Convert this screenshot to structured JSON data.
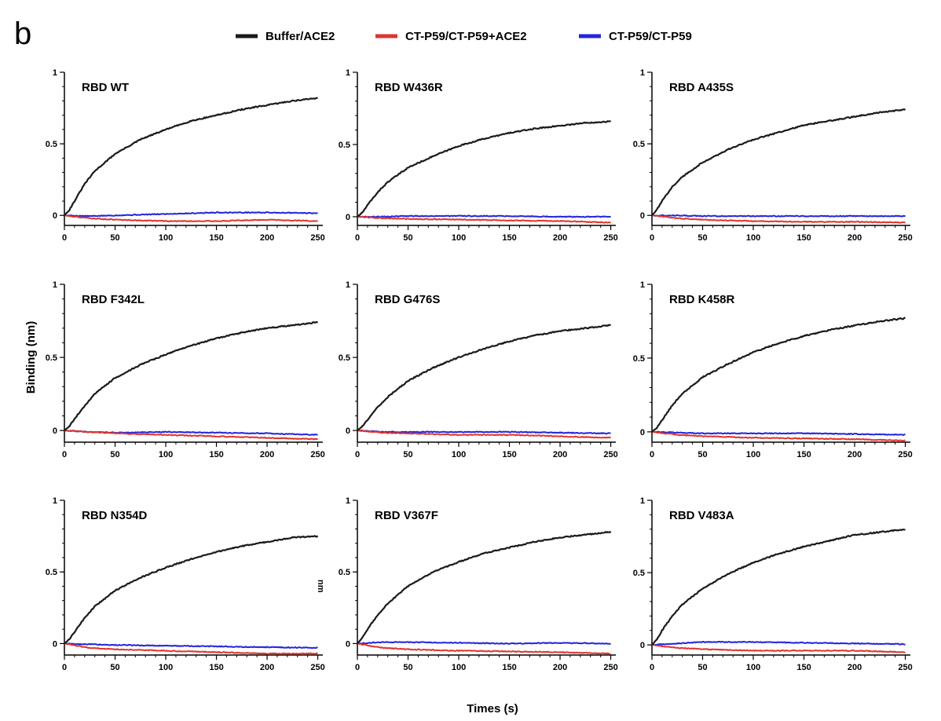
{
  "panel_label": "b",
  "colors": {
    "Buffer/ACE2": "#1a1a1a",
    "CT-P59/CT-P59+ACE2": "#e0352b",
    "CT-P59/CT-P59": "#2323e0"
  },
  "y_axis_label": "Binding (nm)",
  "x_axis_label": "Times (s)",
  "stray_label": "nm",
  "chart_data": [
    {
      "type": "line",
      "title": "RBD WT",
      "xlim": [
        0,
        255
      ],
      "ylim": [
        -0.07,
        1.0
      ],
      "x_ticks": [
        0,
        50,
        100,
        150,
        200,
        250
      ],
      "y_ticks": [
        0,
        0.5,
        1
      ],
      "y_tick_labels": [
        "0",
        "0.5",
        "1"
      ],
      "series": [
        {
          "name": "Buffer/ACE2",
          "x": [
            0,
            5,
            10,
            20,
            30,
            50,
            75,
            100,
            125,
            150,
            175,
            200,
            225,
            250
          ],
          "y": [
            0,
            0.04,
            0.1,
            0.22,
            0.31,
            0.43,
            0.53,
            0.6,
            0.66,
            0.7,
            0.74,
            0.77,
            0.8,
            0.82
          ]
        },
        {
          "name": "CT-P59/CT-P59+ACE2",
          "x": [
            0,
            25,
            50,
            100,
            150,
            200,
            250
          ],
          "y": [
            0,
            -0.02,
            -0.03,
            -0.04,
            -0.04,
            -0.03,
            -0.04
          ]
        },
        {
          "name": "CT-P59/CT-P59",
          "x": [
            0,
            25,
            50,
            100,
            150,
            200,
            250
          ],
          "y": [
            0,
            -0.005,
            0.0,
            0.01,
            0.02,
            0.02,
            0.015
          ]
        }
      ]
    },
    {
      "type": "line",
      "title": "RBD W436R",
      "xlim": [
        0,
        255
      ],
      "ylim": [
        -0.06,
        1.0
      ],
      "x_ticks": [
        0,
        50,
        100,
        150,
        200,
        250
      ],
      "y_ticks": [
        0,
        0.5,
        1
      ],
      "y_tick_labels": [
        "0",
        "0.5",
        "1"
      ],
      "series": [
        {
          "name": "Buffer/ACE2",
          "x": [
            0,
            5,
            10,
            20,
            30,
            50,
            75,
            100,
            125,
            150,
            175,
            200,
            225,
            250
          ],
          "y": [
            0,
            0.03,
            0.08,
            0.17,
            0.24,
            0.34,
            0.42,
            0.49,
            0.54,
            0.58,
            0.61,
            0.63,
            0.65,
            0.66
          ]
        },
        {
          "name": "CT-P59/CT-P59+ACE2",
          "x": [
            0,
            25,
            50,
            100,
            150,
            200,
            250
          ],
          "y": [
            0,
            -0.01,
            -0.015,
            -0.02,
            -0.025,
            -0.03,
            -0.04
          ]
        },
        {
          "name": "CT-P59/CT-P59",
          "x": [
            0,
            25,
            50,
            100,
            150,
            200,
            250
          ],
          "y": [
            0,
            0.0,
            0.005,
            0.005,
            0.005,
            0.0,
            0.0
          ]
        }
      ]
    },
    {
      "type": "line",
      "title": "RBD A435S",
      "xlim": [
        0,
        255
      ],
      "ylim": [
        -0.07,
        1.0
      ],
      "x_ticks": [
        0,
        50,
        100,
        150,
        200,
        250
      ],
      "y_ticks": [
        0,
        0.5,
        1
      ],
      "y_tick_labels": [
        "0",
        "0.5",
        "1"
      ],
      "series": [
        {
          "name": "Buffer/ACE2",
          "x": [
            0,
            5,
            10,
            20,
            30,
            50,
            75,
            100,
            125,
            150,
            175,
            200,
            225,
            250
          ],
          "y": [
            0,
            0.04,
            0.1,
            0.2,
            0.27,
            0.37,
            0.46,
            0.53,
            0.58,
            0.63,
            0.66,
            0.69,
            0.72,
            0.74
          ]
        },
        {
          "name": "CT-P59/CT-P59+ACE2",
          "x": [
            0,
            25,
            50,
            100,
            150,
            200,
            250
          ],
          "y": [
            0,
            -0.02,
            -0.03,
            -0.04,
            -0.045,
            -0.045,
            -0.05
          ]
        },
        {
          "name": "CT-P59/CT-P59",
          "x": [
            0,
            25,
            50,
            100,
            150,
            200,
            250
          ],
          "y": [
            0,
            0.0,
            -0.005,
            -0.005,
            -0.005,
            -0.005,
            -0.005
          ]
        }
      ]
    },
    {
      "type": "line",
      "title": "RBD F342L",
      "xlim": [
        0,
        255
      ],
      "ylim": [
        -0.08,
        1.0
      ],
      "x_ticks": [
        0,
        50,
        100,
        150,
        200,
        250
      ],
      "y_ticks": [
        0,
        0.5,
        1
      ],
      "y_tick_labels": [
        "0",
        "0.5",
        "1"
      ],
      "series": [
        {
          "name": "Buffer/ACE2",
          "x": [
            0,
            5,
            10,
            20,
            30,
            50,
            75,
            100,
            125,
            150,
            175,
            200,
            225,
            250
          ],
          "y": [
            0,
            0.03,
            0.08,
            0.17,
            0.25,
            0.36,
            0.45,
            0.52,
            0.58,
            0.63,
            0.67,
            0.7,
            0.72,
            0.74
          ]
        },
        {
          "name": "CT-P59/CT-P59+ACE2",
          "x": [
            0,
            25,
            50,
            100,
            150,
            200,
            250
          ],
          "y": [
            0,
            -0.01,
            -0.02,
            -0.03,
            -0.04,
            -0.05,
            -0.06
          ]
        },
        {
          "name": "CT-P59/CT-P59",
          "x": [
            0,
            25,
            50,
            100,
            150,
            200,
            250
          ],
          "y": [
            0,
            -0.01,
            -0.015,
            -0.01,
            -0.015,
            -0.02,
            -0.03
          ]
        }
      ]
    },
    {
      "type": "line",
      "title": "RBD G476S",
      "xlim": [
        0,
        255
      ],
      "ylim": [
        -0.08,
        1.0
      ],
      "x_ticks": [
        0,
        50,
        100,
        150,
        200,
        250
      ],
      "y_ticks": [
        0,
        0.5,
        1
      ],
      "y_tick_labels": [
        "0",
        "0.5",
        "1"
      ],
      "series": [
        {
          "name": "Buffer/ACE2",
          "x": [
            0,
            5,
            10,
            20,
            30,
            50,
            75,
            100,
            125,
            150,
            175,
            200,
            225,
            250
          ],
          "y": [
            0,
            0.03,
            0.07,
            0.16,
            0.23,
            0.34,
            0.43,
            0.5,
            0.56,
            0.61,
            0.65,
            0.68,
            0.7,
            0.72
          ]
        },
        {
          "name": "CT-P59/CT-P59+ACE2",
          "x": [
            0,
            25,
            50,
            100,
            150,
            200,
            250
          ],
          "y": [
            0,
            -0.015,
            -0.02,
            -0.03,
            -0.03,
            -0.04,
            -0.05
          ]
        },
        {
          "name": "CT-P59/CT-P59",
          "x": [
            0,
            25,
            50,
            100,
            150,
            200,
            250
          ],
          "y": [
            0,
            -0.01,
            -0.01,
            -0.01,
            -0.01,
            -0.015,
            -0.02
          ]
        }
      ]
    },
    {
      "type": "line",
      "title": "RBD K458R",
      "xlim": [
        0,
        255
      ],
      "ylim": [
        -0.07,
        1.0
      ],
      "x_ticks": [
        0,
        50,
        100,
        150,
        200,
        250
      ],
      "y_ticks": [
        0,
        0.5,
        1
      ],
      "y_tick_labels": [
        "0",
        "0.5",
        "1"
      ],
      "series": [
        {
          "name": "Buffer/ACE2",
          "x": [
            0,
            5,
            10,
            20,
            30,
            50,
            75,
            100,
            125,
            150,
            175,
            200,
            225,
            250
          ],
          "y": [
            0,
            0.03,
            0.08,
            0.18,
            0.26,
            0.37,
            0.46,
            0.54,
            0.6,
            0.65,
            0.69,
            0.72,
            0.75,
            0.77
          ]
        },
        {
          "name": "CT-P59/CT-P59+ACE2",
          "x": [
            0,
            25,
            50,
            100,
            150,
            200,
            250
          ],
          "y": [
            0,
            -0.02,
            -0.03,
            -0.04,
            -0.045,
            -0.05,
            -0.06
          ]
        },
        {
          "name": "CT-P59/CT-P59",
          "x": [
            0,
            25,
            50,
            100,
            150,
            200,
            250
          ],
          "y": [
            0,
            -0.005,
            -0.01,
            -0.01,
            -0.01,
            -0.015,
            -0.02
          ]
        }
      ]
    },
    {
      "type": "line",
      "title": "RBD N354D",
      "xlim": [
        0,
        255
      ],
      "ylim": [
        -0.08,
        1.0
      ],
      "x_ticks": [
        0,
        50,
        100,
        150,
        200,
        250
      ],
      "y_ticks": [
        0,
        0.5,
        1
      ],
      "y_tick_labels": [
        "0",
        "0.5",
        "1"
      ],
      "series": [
        {
          "name": "Buffer/ACE2",
          "x": [
            0,
            5,
            10,
            20,
            30,
            50,
            75,
            100,
            125,
            150,
            175,
            200,
            225,
            250
          ],
          "y": [
            0,
            0.03,
            0.08,
            0.18,
            0.26,
            0.37,
            0.46,
            0.53,
            0.59,
            0.64,
            0.68,
            0.71,
            0.74,
            0.75
          ]
        },
        {
          "name": "CT-P59/CT-P59+ACE2",
          "x": [
            0,
            25,
            50,
            100,
            150,
            200,
            250
          ],
          "y": [
            0,
            -0.03,
            -0.04,
            -0.05,
            -0.06,
            -0.07,
            -0.07
          ]
        },
        {
          "name": "CT-P59/CT-P59",
          "x": [
            0,
            25,
            50,
            100,
            150,
            200,
            250
          ],
          "y": [
            0,
            -0.005,
            -0.01,
            -0.015,
            -0.02,
            -0.025,
            -0.03
          ]
        }
      ]
    },
    {
      "type": "line",
      "title": "RBD V367F",
      "xlim": [
        0,
        255
      ],
      "ylim": [
        -0.08,
        1.0
      ],
      "x_ticks": [
        0,
        50,
        100,
        150,
        200,
        250
      ],
      "y_ticks": [
        0,
        0.5,
        1
      ],
      "y_tick_labels": [
        "0",
        "0.5",
        "1"
      ],
      "series": [
        {
          "name": "Buffer/ACE2",
          "x": [
            0,
            5,
            10,
            20,
            30,
            50,
            75,
            100,
            125,
            150,
            175,
            200,
            225,
            250
          ],
          "y": [
            0,
            0.04,
            0.1,
            0.2,
            0.28,
            0.4,
            0.5,
            0.57,
            0.63,
            0.67,
            0.71,
            0.74,
            0.76,
            0.78
          ]
        },
        {
          "name": "CT-P59/CT-P59+ACE2",
          "x": [
            0,
            25,
            50,
            100,
            150,
            200,
            250
          ],
          "y": [
            0,
            -0.03,
            -0.04,
            -0.05,
            -0.055,
            -0.06,
            -0.07
          ]
        },
        {
          "name": "CT-P59/CT-P59",
          "x": [
            0,
            25,
            50,
            100,
            150,
            200,
            250
          ],
          "y": [
            0,
            0.01,
            0.01,
            0.005,
            0.0,
            0.005,
            0.0
          ]
        }
      ]
    },
    {
      "type": "line",
      "title": "RBD V483A",
      "xlim": [
        0,
        255
      ],
      "ylim": [
        -0.07,
        1.0
      ],
      "x_ticks": [
        0,
        50,
        100,
        150,
        200,
        250
      ],
      "y_ticks": [
        0,
        0.5,
        1
      ],
      "y_tick_labels": [
        "0",
        "0.5",
        "1"
      ],
      "series": [
        {
          "name": "Buffer/ACE2",
          "x": [
            0,
            5,
            10,
            20,
            30,
            50,
            75,
            100,
            125,
            150,
            175,
            200,
            225,
            250
          ],
          "y": [
            0,
            0.04,
            0.1,
            0.2,
            0.28,
            0.39,
            0.49,
            0.57,
            0.63,
            0.68,
            0.72,
            0.76,
            0.78,
            0.8
          ]
        },
        {
          "name": "CT-P59/CT-P59+ACE2",
          "x": [
            0,
            25,
            50,
            100,
            150,
            200,
            250
          ],
          "y": [
            0,
            -0.02,
            -0.03,
            -0.04,
            -0.04,
            -0.04,
            -0.05
          ]
        },
        {
          "name": "CT-P59/CT-P59",
          "x": [
            0,
            25,
            50,
            100,
            150,
            200,
            250
          ],
          "y": [
            0,
            0.01,
            0.02,
            0.02,
            0.015,
            0.01,
            0.005
          ]
        }
      ]
    }
  ]
}
